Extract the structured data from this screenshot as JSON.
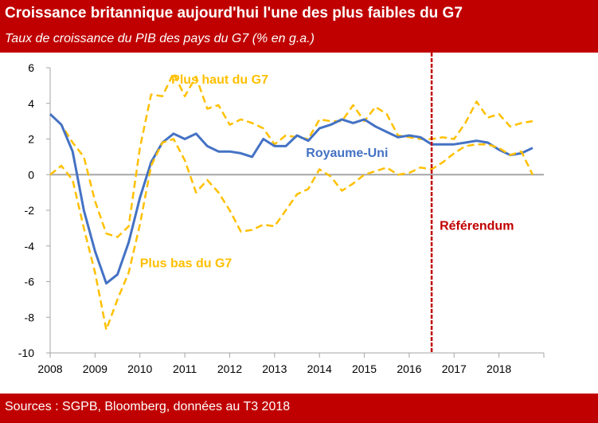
{
  "header": {
    "title": "Croissance britannique aujourd'hui l'une des plus faibles du G7",
    "subtitle": "Taux de croissance du PIB des pays du G7 (% en g.a.)"
  },
  "footer": {
    "source": "Sources : SGPB, Bloomberg, données au T3 2018"
  },
  "chart_data": {
    "type": "line",
    "title": "Croissance britannique aujourd'hui l'une des plus faibles du G7",
    "subtitle": "Taux de croissance du PIB des pays du G7 (% en g.a.)",
    "ylim": [
      -10,
      6
    ],
    "yticks": [
      -10,
      -8,
      -6,
      -4,
      -2,
      0,
      2,
      4,
      6
    ],
    "xlim": [
      2008,
      2019
    ],
    "xticks": [
      "2008",
      "2009",
      "2010",
      "2011",
      "2012",
      "2013",
      "2014",
      "2015",
      "2016",
      "2017",
      "2018"
    ],
    "grid": false,
    "legend": "none",
    "series": [
      {
        "name": "Plus haut du G7",
        "color": "#ffc000",
        "style": "dashed",
        "x": [
          2008.0,
          2008.25,
          2008.5,
          2008.75,
          2009.0,
          2009.25,
          2009.5,
          2009.75,
          2010.0,
          2010.25,
          2010.5,
          2010.75,
          2011.0,
          2011.25,
          2011.5,
          2011.75,
          2012.0,
          2012.25,
          2012.5,
          2012.75,
          2013.0,
          2013.25,
          2013.5,
          2013.75,
          2014.0,
          2014.25,
          2014.5,
          2014.75,
          2015.0,
          2015.25,
          2015.5,
          2015.75,
          2016.0,
          2016.25,
          2016.5,
          2016.75,
          2017.0,
          2017.25,
          2017.5,
          2017.75,
          2018.0,
          2018.25,
          2018.5,
          2018.75
        ],
        "y": [
          3.4,
          2.8,
          1.8,
          1.0,
          -1.5,
          -3.3,
          -3.5,
          -2.9,
          1.5,
          4.5,
          4.4,
          5.7,
          4.4,
          5.5,
          3.7,
          3.9,
          2.8,
          3.1,
          2.9,
          2.6,
          1.7,
          2.2,
          2.1,
          2.0,
          3.1,
          3.0,
          3.0,
          3.9,
          3.0,
          3.8,
          3.4,
          2.2,
          2.1,
          2.0,
          2.0,
          2.1,
          2.0,
          2.9,
          4.1,
          3.2,
          3.4,
          2.7,
          2.9,
          3.0
        ]
      },
      {
        "name": "Royaume-Uni",
        "color": "#4472c4",
        "style": "solid",
        "x": [
          2008.0,
          2008.25,
          2008.5,
          2008.75,
          2009.0,
          2009.25,
          2009.5,
          2009.75,
          2010.0,
          2010.25,
          2010.5,
          2010.75,
          2011.0,
          2011.25,
          2011.5,
          2011.75,
          2012.0,
          2012.25,
          2012.5,
          2012.75,
          2013.0,
          2013.25,
          2013.5,
          2013.75,
          2014.0,
          2014.25,
          2014.5,
          2014.75,
          2015.0,
          2015.25,
          2015.5,
          2015.75,
          2016.0,
          2016.25,
          2016.5,
          2016.75,
          2017.0,
          2017.25,
          2017.5,
          2017.75,
          2018.0,
          2018.25,
          2018.5,
          2018.75
        ],
        "y": [
          3.4,
          2.8,
          1.3,
          -2.0,
          -4.3,
          -6.1,
          -5.6,
          -3.8,
          -1.3,
          0.7,
          1.8,
          2.3,
          2.0,
          2.3,
          1.6,
          1.3,
          1.3,
          1.2,
          1.0,
          2.0,
          1.6,
          1.6,
          2.2,
          1.9,
          2.6,
          2.8,
          3.1,
          2.9,
          3.1,
          2.7,
          2.4,
          2.1,
          2.2,
          2.1,
          1.7,
          1.7,
          1.7,
          1.8,
          1.9,
          1.8,
          1.4,
          1.1,
          1.2,
          1.5
        ]
      },
      {
        "name": "Plus bas du G7",
        "color": "#ffc000",
        "style": "dashed",
        "x": [
          2008.0,
          2008.25,
          2008.5,
          2008.75,
          2009.0,
          2009.25,
          2009.5,
          2009.75,
          2010.0,
          2010.25,
          2010.5,
          2010.75,
          2011.0,
          2011.25,
          2011.5,
          2011.75,
          2012.0,
          2012.25,
          2012.5,
          2012.75,
          2013.0,
          2013.25,
          2013.5,
          2013.75,
          2014.0,
          2014.25,
          2014.5,
          2014.75,
          2015.0,
          2015.25,
          2015.5,
          2015.75,
          2016.0,
          2016.25,
          2016.5,
          2016.75,
          2017.0,
          2017.25,
          2017.5,
          2017.75,
          2018.0,
          2018.25,
          2018.5,
          2018.75
        ],
        "y": [
          0.0,
          0.5,
          -0.3,
          -3.0,
          -5.5,
          -8.7,
          -7.0,
          -5.5,
          -2.8,
          0.5,
          1.8,
          2.0,
          0.8,
          -1.0,
          -0.3,
          -1.0,
          -2.0,
          -3.2,
          -3.1,
          -2.8,
          -2.9,
          -2.0,
          -1.1,
          -0.8,
          0.3,
          -0.1,
          -0.9,
          -0.5,
          0.0,
          0.2,
          0.4,
          0.0,
          0.1,
          0.4,
          0.3,
          0.7,
          1.2,
          1.6,
          1.7,
          1.7,
          1.5,
          1.1,
          1.3,
          0.0
        ]
      }
    ],
    "annotations": [
      {
        "text": "Plus haut du G7",
        "color": "#ffc000",
        "x": 2010.7,
        "y": 5.1
      },
      {
        "text": "Royaume-Uni",
        "color": "#4472c4",
        "x": 2013.7,
        "y": 1.0
      },
      {
        "text": "Plus bas du G7",
        "color": "#ffc000",
        "x": 2010.0,
        "y": -5.2
      }
    ],
    "marker": {
      "text": "Référendum",
      "color": "#c00000",
      "x": 2016.5,
      "label_y": -3.1
    }
  }
}
